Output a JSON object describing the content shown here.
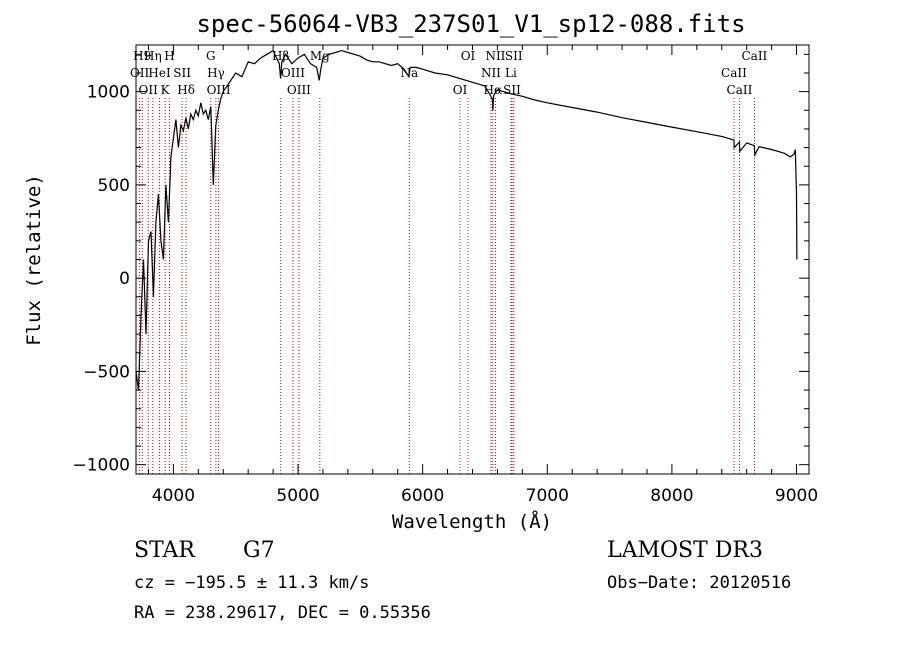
{
  "chart_data": {
    "type": "line",
    "title": "spec-56064-VB3_237S01_V1_sp12-088.fits",
    "xlabel": "Wavelength (Å)",
    "ylabel": "Flux (relative)",
    "xlim": [
      3700,
      9100
    ],
    "ylim": [
      -1050,
      1250
    ],
    "xticks": [
      4000,
      5000,
      6000,
      7000,
      8000,
      9000
    ],
    "yticks": [
      -1000,
      -500,
      0,
      500,
      1000
    ],
    "series": [
      {
        "name": "spectrum",
        "x": [
          3700,
          3720,
          3740,
          3760,
          3780,
          3800,
          3820,
          3840,
          3860,
          3880,
          3900,
          3920,
          3940,
          3960,
          3980,
          4000,
          4020,
          4040,
          4060,
          4080,
          4100,
          4120,
          4140,
          4160,
          4180,
          4200,
          4220,
          4240,
          4260,
          4280,
          4300,
          4320,
          4340,
          4360,
          4380,
          4400,
          4450,
          4500,
          4550,
          4600,
          4650,
          4700,
          4750,
          4800,
          4850,
          4860,
          4870,
          4900,
          4950,
          5000,
          5050,
          5100,
          5150,
          5170,
          5180,
          5200,
          5250,
          5300,
          5350,
          5400,
          5450,
          5500,
          5550,
          5600,
          5650,
          5700,
          5750,
          5800,
          5850,
          5890,
          5900,
          5950,
          6000,
          6100,
          6200,
          6300,
          6400,
          6500,
          6560,
          6563,
          6570,
          6600,
          6700,
          6800,
          6900,
          7000,
          7200,
          7400,
          7600,
          7800,
          8000,
          8200,
          8400,
          8498,
          8500,
          8542,
          8545,
          8600,
          8662,
          8665,
          8700,
          8800,
          8900,
          8950,
          8980,
          8990,
          9000,
          9003
        ],
        "y": [
          -500,
          -600,
          -200,
          100,
          -300,
          200,
          250,
          -100,
          300,
          450,
          200,
          100,
          500,
          300,
          650,
          750,
          850,
          700,
          820,
          790,
          860,
          800,
          880,
          850,
          900,
          870,
          940,
          880,
          900,
          850,
          920,
          500,
          820,
          900,
          960,
          1000,
          1050,
          1100,
          1080,
          1160,
          1150,
          1180,
          1200,
          1220,
          1150,
          1070,
          1160,
          1200,
          1150,
          1180,
          1200,
          1150,
          1130,
          1060,
          1110,
          1180,
          1200,
          1210,
          1220,
          1210,
          1200,
          1190,
          1170,
          1160,
          1160,
          1150,
          1140,
          1150,
          1120,
          1080,
          1130,
          1130,
          1120,
          1100,
          1090,
          1070,
          1050,
          1030,
          960,
          900,
          980,
          1010,
          990,
          975,
          955,
          940,
          915,
          890,
          860,
          835,
          810,
          785,
          760,
          740,
          700,
          730,
          680,
          725,
          710,
          660,
          705,
          690,
          670,
          650,
          665,
          690,
          450,
          100
        ]
      }
    ],
    "lines": [
      {
        "wl": 3750,
        "label": "H9"
      },
      {
        "wl": 3729,
        "label": "OII"
      },
      {
        "wl": 3798,
        "label": "OII"
      },
      {
        "wl": 3835,
        "label": "Hη"
      },
      {
        "wl": 3889,
        "label": "HeI"
      },
      {
        "wl": 3934,
        "label": "K"
      },
      {
        "wl": 3969,
        "label": "H"
      },
      {
        "wl": 4070,
        "label": "SII"
      },
      {
        "wl": 4102,
        "label": "Hδ"
      },
      {
        "wl": 4300,
        "label": "G"
      },
      {
        "wl": 4341,
        "label": "Hγ"
      },
      {
        "wl": 4363,
        "label": "OIII"
      },
      {
        "wl": 4861,
        "label": "Hβ"
      },
      {
        "wl": 4959,
        "label": "OIII"
      },
      {
        "wl": 5007,
        "label": "OIII"
      },
      {
        "wl": 5175,
        "label": "Mg"
      },
      {
        "wl": 5893,
        "label": "Na"
      },
      {
        "wl": 6300,
        "label": "OI"
      },
      {
        "wl": 6364,
        "label": "OI"
      },
      {
        "wl": 6548,
        "label": "NII"
      },
      {
        "wl": 6563,
        "label": "Hα"
      },
      {
        "wl": 6584,
        "label": "NII"
      },
      {
        "wl": 6708,
        "label": "Li"
      },
      {
        "wl": 6717,
        "label": "SII"
      },
      {
        "wl": 6731,
        "label": "SII"
      },
      {
        "wl": 8498,
        "label": "CaII"
      },
      {
        "wl": 8542,
        "label": "CaII"
      },
      {
        "wl": 8662,
        "label": "CaII"
      }
    ]
  },
  "info": {
    "star_label": "STAR",
    "star_class": "G7",
    "survey": "LAMOST DR3",
    "cz": "cz = −195.5 ± 11.3 km/s",
    "obs_date": "Obs−Date: 20120516",
    "radec": "RA = 238.29617, DEC =   0.55356"
  },
  "colors": {
    "line": "#000000",
    "marker": "#cc0000"
  }
}
